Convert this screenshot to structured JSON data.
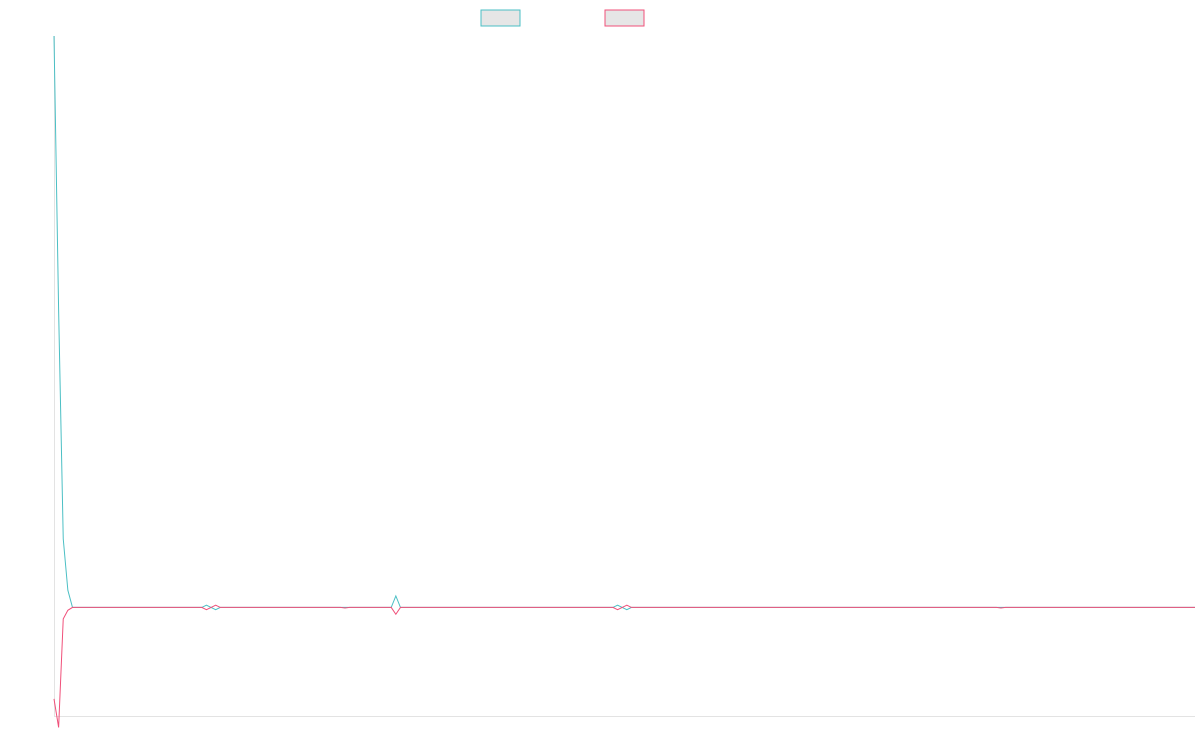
{
  "chart_data": {
    "type": "line",
    "title": "",
    "xlabel": "",
    "ylabel": "",
    "legend": {
      "position": "top-center",
      "entries": [
        {
          "swatch_fill": "#e6e6e6",
          "color": "#4bbfc4"
        },
        {
          "swatch_fill": "#e6e6e6",
          "color": "#f0507a"
        }
      ]
    },
    "grid": false,
    "x_range": [
      0,
      247
    ],
    "y_range": [
      -0.19,
      1.0
    ],
    "series": [
      {
        "color": "#4bbfc4",
        "points": [
          [
            0,
            1.0
          ],
          [
            1,
            0.52
          ],
          [
            2,
            0.12
          ],
          [
            3,
            0.03
          ],
          [
            4,
            0.0
          ],
          [
            32,
            0.0
          ],
          [
            33,
            0.004
          ],
          [
            34,
            0.0
          ],
          [
            35,
            -0.004
          ],
          [
            36,
            0.0
          ],
          [
            73,
            0.0
          ],
          [
            74,
            0.02
          ],
          [
            75,
            0.0
          ],
          [
            121,
            0.0
          ],
          [
            122,
            0.004
          ],
          [
            123,
            0.0
          ],
          [
            124,
            -0.004
          ],
          [
            125,
            0.0
          ],
          [
            247,
            0.0
          ]
        ]
      },
      {
        "color": "#f0507a",
        "points": [
          [
            0,
            -0.16
          ],
          [
            1,
            -0.21
          ],
          [
            2,
            -0.02
          ],
          [
            3,
            -0.005
          ],
          [
            4,
            0.0
          ],
          [
            32,
            0.0
          ],
          [
            33,
            -0.004
          ],
          [
            34,
            0.0
          ],
          [
            35,
            0.004
          ],
          [
            36,
            0.0
          ],
          [
            62,
            0.0
          ],
          [
            63,
            -0.001
          ],
          [
            64,
            0.0
          ],
          [
            73,
            0.0
          ],
          [
            74,
            -0.012
          ],
          [
            75,
            0.0
          ],
          [
            121,
            0.0
          ],
          [
            122,
            -0.004
          ],
          [
            123,
            0.0
          ],
          [
            124,
            0.004
          ],
          [
            125,
            0.0
          ],
          [
            204,
            0.0
          ],
          [
            205,
            -0.001
          ],
          [
            206,
            0.0
          ],
          [
            247,
            0.0
          ]
        ]
      }
    ]
  }
}
